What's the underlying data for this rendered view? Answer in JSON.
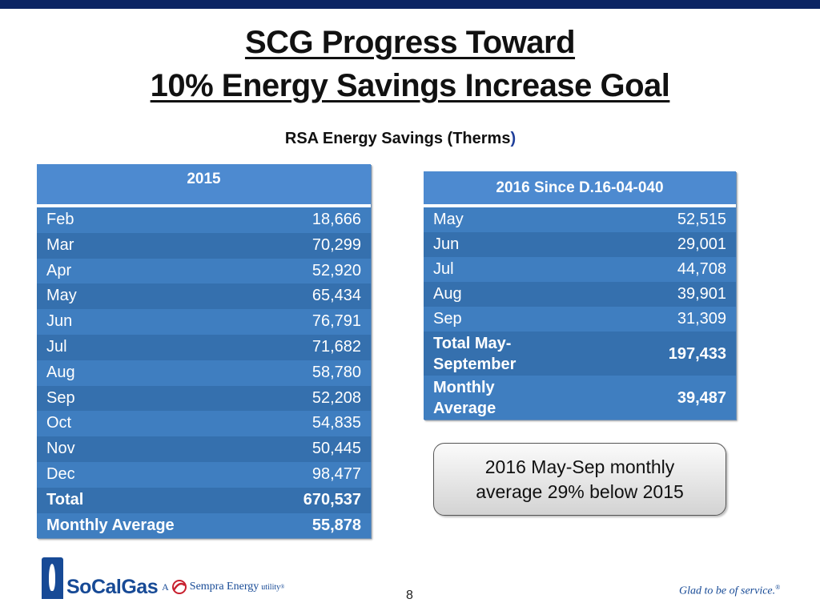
{
  "title": {
    "line1": "SCG Progress Toward",
    "line2": "10% Energy Savings Increase Goal"
  },
  "subtitle": {
    "main": "RSA Energy Savings (Therms",
    "close": ")"
  },
  "table_2015": {
    "header": "2015",
    "rows": [
      {
        "month": "Feb",
        "value": "18,666"
      },
      {
        "month": "Mar",
        "value": "70,299"
      },
      {
        "month": "Apr",
        "value": "52,920"
      },
      {
        "month": "May",
        "value": "65,434"
      },
      {
        "month": "Jun",
        "value": "76,791"
      },
      {
        "month": "Jul",
        "value": "71,682"
      },
      {
        "month": "Aug",
        "value": "58,780"
      },
      {
        "month": "Sep",
        "value": "52,208"
      },
      {
        "month": "Oct",
        "value": "54,835"
      },
      {
        "month": "Nov",
        "value": "50,445"
      },
      {
        "month": "Dec",
        "value": "98,477"
      }
    ],
    "total": {
      "label": "Total",
      "value": "670,537"
    },
    "average": {
      "label": "Monthly Average",
      "value": "55,878"
    }
  },
  "table_2016": {
    "header": "2016 Since D.16-04-040",
    "rows": [
      {
        "month": "May",
        "value": "52,515"
      },
      {
        "month": "Jun",
        "value": "29,001"
      },
      {
        "month": "Jul",
        "value": "44,708"
      },
      {
        "month": "Aug",
        "value": "39,901"
      },
      {
        "month": "Sep",
        "value": "31,309"
      }
    ],
    "total": {
      "label_line1": "Total May-",
      "label_line2": "September",
      "value": "197,433"
    },
    "average": {
      "label_line1": "Monthly",
      "label_line2": "Average",
      "value": "39,487"
    }
  },
  "callout": {
    "line1": "2016 May-Sep monthly",
    "line2": "average 29% below 2015"
  },
  "footer": {
    "logo_text": "SoCalGas",
    "tagline_a": "A",
    "tagline_b": "Sempra Energy",
    "tagline_c": "utility",
    "tagline_reg": "®",
    "page_number": "8",
    "slogan": "Glad to be of service.",
    "slogan_reg": "®"
  },
  "colors": {
    "top_bar": "#0b2463",
    "table_dark": "#3570ae",
    "table_light": "#3f7ec0",
    "brand_blue": "#174a96"
  }
}
